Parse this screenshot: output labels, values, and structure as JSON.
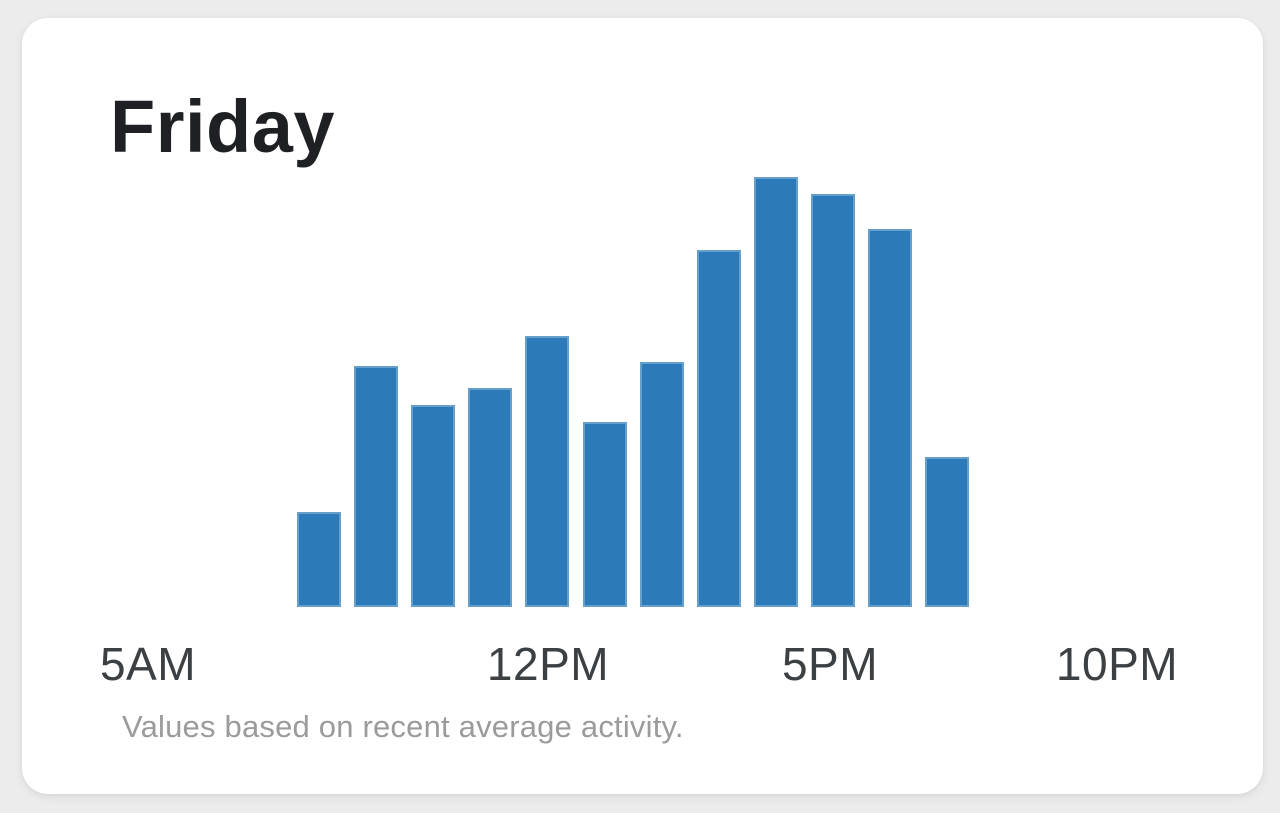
{
  "card": {
    "title": "Friday",
    "footnote": "Values based on recent average activity."
  },
  "chart_data": {
    "type": "bar",
    "title": "Friday",
    "x_tick_labels": [
      "5AM",
      "12PM",
      "5PM",
      "10PM"
    ],
    "x_axis_range": [
      "5AM",
      "10PM"
    ],
    "hours": [
      "8AM",
      "9AM",
      "10AM",
      "11AM",
      "12PM",
      "1PM",
      "2PM",
      "3PM",
      "4PM",
      "5PM",
      "6PM",
      "7PM"
    ],
    "values_percent_of_peak": [
      22,
      56,
      47,
      51,
      63,
      43,
      57,
      83,
      100,
      96,
      88,
      35
    ],
    "ylim": [
      0,
      100
    ],
    "grid": false,
    "legend": false,
    "bar_color": "#2d7ab8",
    "axis_label_color": "#3c4043",
    "title_color": "#1e2023",
    "footnote_color": "#9b9b9b",
    "footnote": "Values based on recent average activity."
  }
}
